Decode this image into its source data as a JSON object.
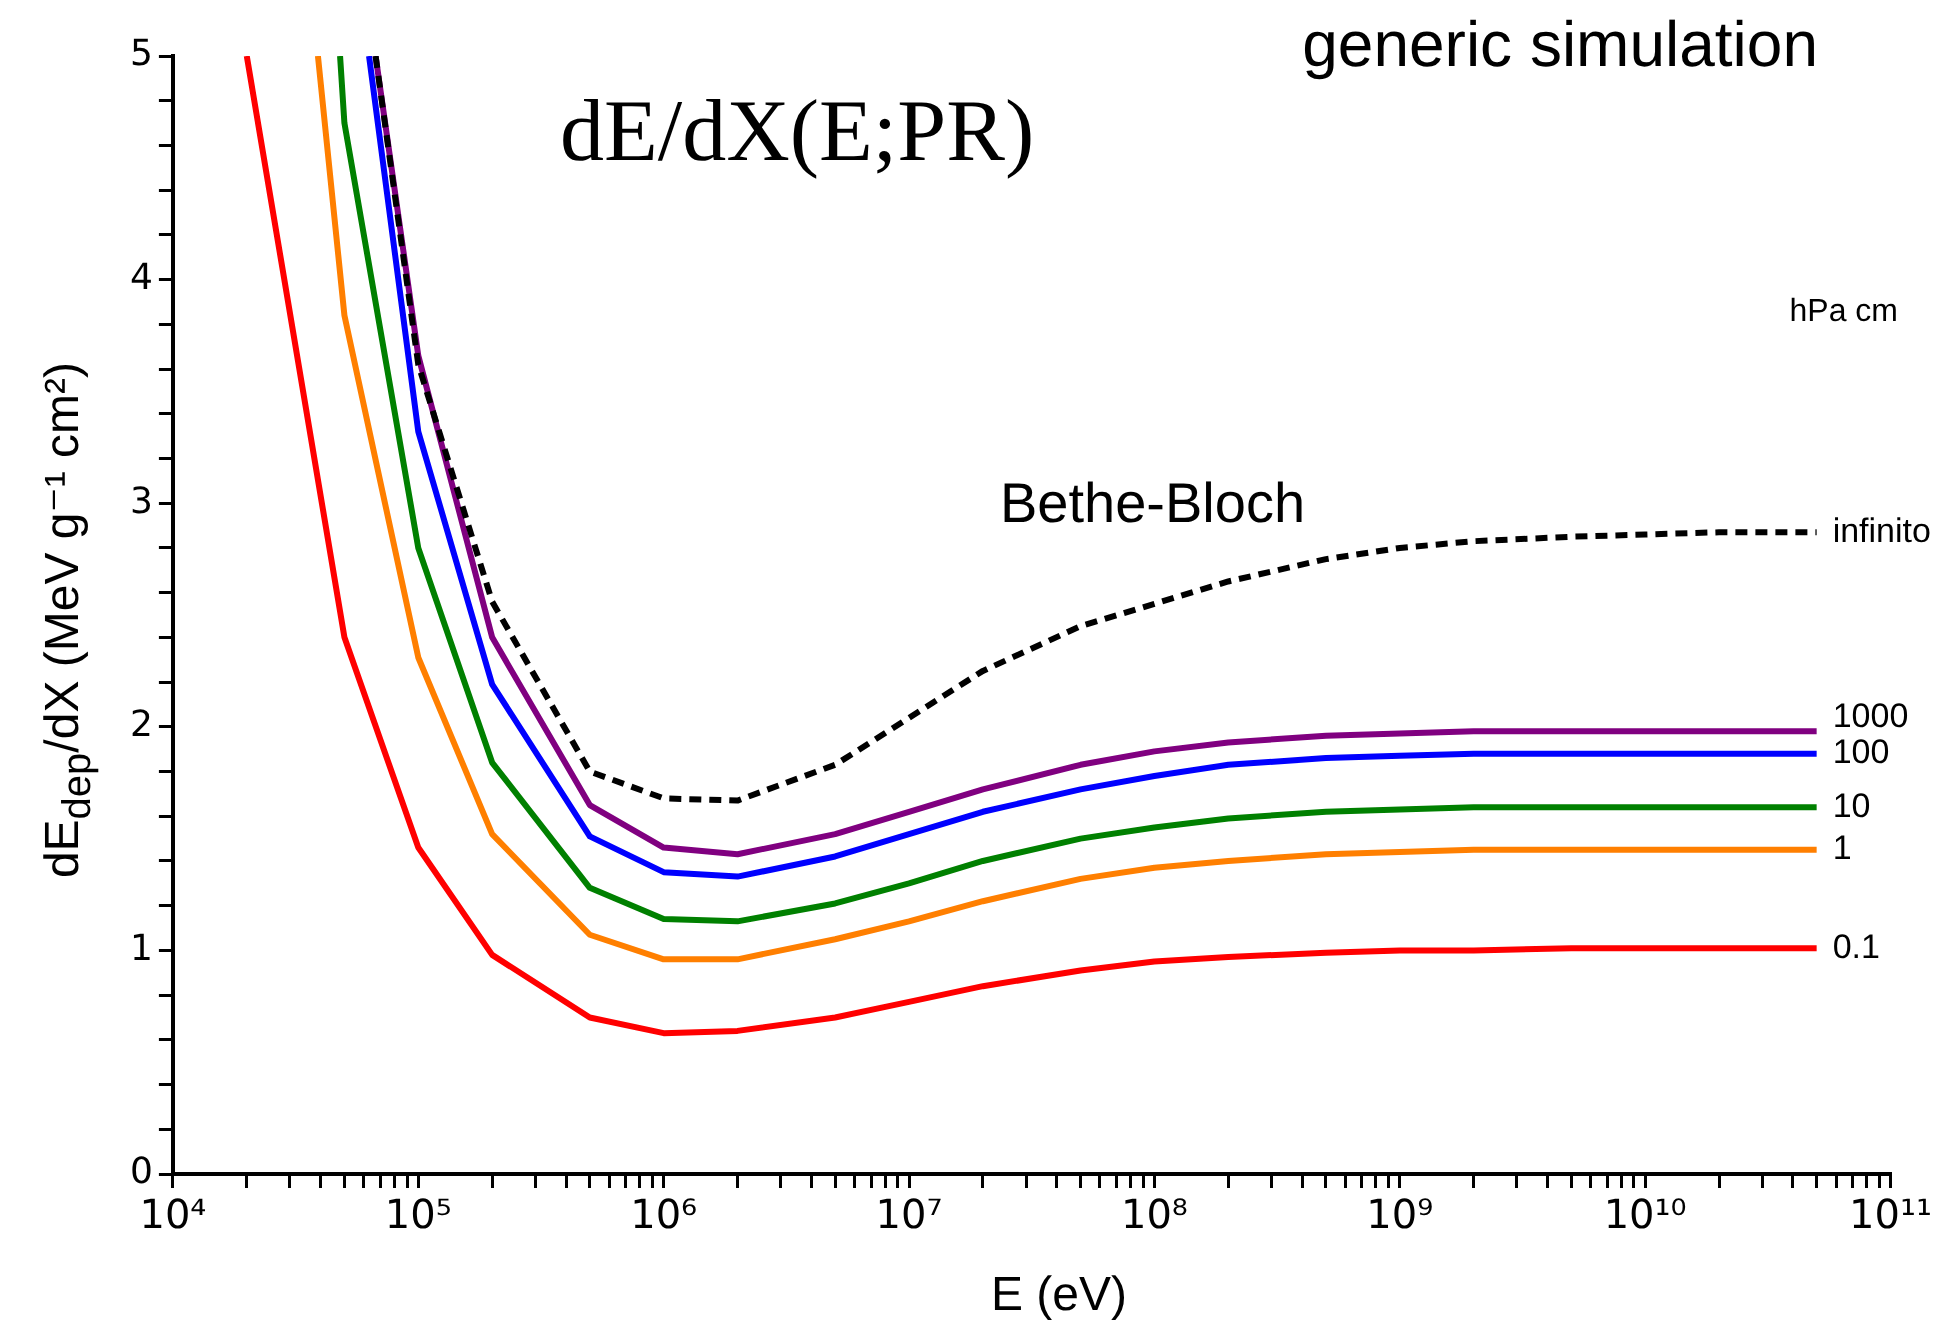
{
  "chart_data": {
    "type": "line",
    "xlabel": "E (eV)",
    "ylabel": "dE$_{dep}$/dX (MeV g⁻¹ cm²)",
    "legend_title": "hPa cm",
    "log": "x",
    "grid": false,
    "legend": false,
    "marker": "none",
    "xlim": [
      10000,
      100000000000
    ],
    "ylim": [
      0,
      5
    ],
    "xticks": [
      {
        "value": 10000,
        "label": "10⁴"
      },
      {
        "value": 20000,
        "label": null
      },
      {
        "value": 30000,
        "label": null
      },
      {
        "value": 40000,
        "label": null
      },
      {
        "value": 50000,
        "label": null
      },
      {
        "value": 60000,
        "label": null
      },
      {
        "value": 70000,
        "label": null
      },
      {
        "value": 80000,
        "label": null
      },
      {
        "value": 90000,
        "label": null
      },
      {
        "value": 100000,
        "label": "10⁵"
      },
      {
        "value": 200000,
        "label": null
      },
      {
        "value": 300000,
        "label": null
      },
      {
        "value": 400000,
        "label": null
      },
      {
        "value": 500000,
        "label": null
      },
      {
        "value": 600000,
        "label": null
      },
      {
        "value": 700000,
        "label": null
      },
      {
        "value": 800000,
        "label": null
      },
      {
        "value": 900000,
        "label": null
      },
      {
        "value": 1000000,
        "label": "10⁶"
      },
      {
        "value": 2000000,
        "label": null
      },
      {
        "value": 3000000,
        "label": null
      },
      {
        "value": 4000000,
        "label": null
      },
      {
        "value": 5000000,
        "label": null
      },
      {
        "value": 6000000,
        "label": null
      },
      {
        "value": 7000000,
        "label": null
      },
      {
        "value": 8000000,
        "label": null
      },
      {
        "value": 9000000,
        "label": null
      },
      {
        "value": 10000000,
        "label": "10⁷"
      },
      {
        "value": 20000000,
        "label": null
      },
      {
        "value": 30000000,
        "label": null
      },
      {
        "value": 40000000,
        "label": null
      },
      {
        "value": 50000000,
        "label": null
      },
      {
        "value": 60000000,
        "label": null
      },
      {
        "value": 70000000,
        "label": null
      },
      {
        "value": 80000000,
        "label": null
      },
      {
        "value": 90000000,
        "label": null
      },
      {
        "value": 100000000,
        "label": "10⁸"
      },
      {
        "value": 200000000,
        "label": null
      },
      {
        "value": 300000000,
        "label": null
      },
      {
        "value": 400000000,
        "label": null
      },
      {
        "value": 500000000,
        "label": null
      },
      {
        "value": 600000000,
        "label": null
      },
      {
        "value": 700000000,
        "label": null
      },
      {
        "value": 800000000,
        "label": null
      },
      {
        "value": 900000000,
        "label": null
      },
      {
        "value": 1000000000,
        "label": "10⁹"
      },
      {
        "value": 2000000000,
        "label": null
      },
      {
        "value": 3000000000,
        "label": null
      },
      {
        "value": 4000000000,
        "label": null
      },
      {
        "value": 5000000000,
        "label": null
      },
      {
        "value": 6000000000,
        "label": null
      },
      {
        "value": 7000000000,
        "label": null
      },
      {
        "value": 8000000000,
        "label": null
      },
      {
        "value": 9000000000,
        "label": null
      },
      {
        "value": 10000000000,
        "label": "10¹⁰"
      },
      {
        "value": 20000000000,
        "label": null
      },
      {
        "value": 30000000000,
        "label": null
      },
      {
        "value": 40000000000,
        "label": null
      },
      {
        "value": 50000000000,
        "label": null
      },
      {
        "value": 60000000000,
        "label": null
      },
      {
        "value": 70000000000,
        "label": null
      },
      {
        "value": 80000000000,
        "label": null
      },
      {
        "value": 90000000000,
        "label": null
      },
      {
        "value": 100000000000,
        "label": "10¹¹"
      }
    ],
    "yticks": [
      0,
      {
        "value": 0.2,
        "label": null
      },
      {
        "value": 0.4,
        "label": null
      },
      {
        "value": 0.6,
        "label": null
      },
      {
        "value": 0.8,
        "label": null
      },
      1,
      {
        "value": 1.2,
        "label": null
      },
      {
        "value": 1.4,
        "label": null
      },
      {
        "value": 1.6,
        "label": null
      },
      {
        "value": 1.8,
        "label": null
      },
      2,
      {
        "value": 2.2,
        "label": null
      },
      {
        "value": 2.4,
        "label": null
      },
      {
        "value": 2.6,
        "label": null
      },
      {
        "value": 2.8,
        "label": null
      },
      3,
      {
        "value": 3.2,
        "label": null
      },
      {
        "value": 3.4,
        "label": null
      },
      {
        "value": 3.6,
        "label": null
      },
      {
        "value": 3.8,
        "label": null
      },
      4,
      {
        "value": 4.2,
        "label": null
      },
      {
        "value": 4.4,
        "label": null
      },
      {
        "value": 4.6,
        "label": null
      },
      {
        "value": 4.8,
        "label": null
      },
      5
    ],
    "annotations": [
      "generic simulation",
      "dE/dX(E;PR)",
      "Bethe-Bloch"
    ],
    "series": [
      {
        "name": "infinito",
        "color": "#000000",
        "line_style": "dashed",
        "x": [
          67000,
          100000,
          200000,
          500000,
          1000000,
          2000000,
          5000000,
          10000000,
          20000000,
          50000000,
          100000000,
          200000000,
          500000000,
          1000000000,
          2000000000,
          5000000000,
          10000000000,
          20000000000,
          50000000000
        ],
        "values": [
          5,
          3.62,
          2.56,
          1.8,
          1.68,
          1.67,
          1.83,
          2.04,
          2.25,
          2.45,
          2.55,
          2.65,
          2.75,
          2.8,
          2.83,
          2.85,
          2.86,
          2.87,
          2.87
        ]
      },
      {
        "name": "1000",
        "color": "#800080",
        "x": [
          67000,
          100000,
          200000,
          500000,
          1000000,
          2000000,
          5000000,
          10000000,
          20000000,
          50000000,
          100000000,
          200000000,
          500000000,
          1000000000,
          2000000000,
          5000000000,
          10000000000,
          20000000000,
          50000000000
        ],
        "values": [
          5,
          3.66,
          2.4,
          1.65,
          1.46,
          1.43,
          1.52,
          1.62,
          1.72,
          1.83,
          1.89,
          1.93,
          1.96,
          1.97,
          1.98,
          1.98,
          1.98,
          1.98,
          1.98
        ]
      },
      {
        "name": "100",
        "color": "#0000ff",
        "x": [
          63000,
          100000,
          200000,
          500000,
          1000000,
          2000000,
          5000000,
          10000000,
          20000000,
          50000000,
          100000000,
          200000000,
          500000000,
          1000000000,
          2000000000,
          5000000000,
          10000000000,
          20000000000,
          50000000000
        ],
        "values": [
          5,
          3.32,
          2.19,
          1.51,
          1.35,
          1.33,
          1.42,
          1.52,
          1.62,
          1.72,
          1.78,
          1.83,
          1.86,
          1.87,
          1.88,
          1.88,
          1.88,
          1.88,
          1.88
        ]
      },
      {
        "name": "10",
        "color": "#008000",
        "x": [
          48000,
          50000,
          100000,
          200000,
          500000,
          1000000,
          2000000,
          5000000,
          10000000,
          20000000,
          50000000,
          100000000,
          200000000,
          500000000,
          1000000000,
          2000000000,
          5000000000,
          10000000000,
          20000000000,
          50000000000
        ],
        "values": [
          5,
          4.7,
          2.8,
          1.84,
          1.28,
          1.14,
          1.13,
          1.21,
          1.3,
          1.4,
          1.5,
          1.55,
          1.59,
          1.62,
          1.63,
          1.64,
          1.64,
          1.64,
          1.64,
          1.64
        ]
      },
      {
        "name": "1",
        "color": "#ff7f00",
        "x": [
          39000,
          50000,
          100000,
          200000,
          500000,
          1000000,
          2000000,
          5000000,
          10000000,
          20000000,
          50000000,
          100000000,
          200000000,
          500000000,
          1000000000,
          2000000000,
          5000000000,
          10000000000,
          20000000000,
          50000000000
        ],
        "values": [
          5,
          3.84,
          2.31,
          1.52,
          1.07,
          0.96,
          0.96,
          1.05,
          1.13,
          1.22,
          1.32,
          1.37,
          1.4,
          1.43,
          1.44,
          1.45,
          1.45,
          1.45,
          1.45,
          1.45
        ]
      },
      {
        "name": "0.1",
        "color": "#ff0000",
        "x": [
          20000,
          50000,
          100000,
          200000,
          500000,
          1000000,
          2000000,
          5000000,
          10000000,
          20000000,
          50000000,
          100000000,
          200000000,
          500000000,
          1000000000,
          2000000000,
          5000000000,
          10000000000,
          20000000000,
          50000000000
        ],
        "values": [
          5,
          2.4,
          1.46,
          0.98,
          0.7,
          0.63,
          0.64,
          0.7,
          0.77,
          0.84,
          0.91,
          0.95,
          0.97,
          0.99,
          1.0,
          1.0,
          1.01,
          1.01,
          1.01,
          1.01
        ]
      }
    ]
  }
}
